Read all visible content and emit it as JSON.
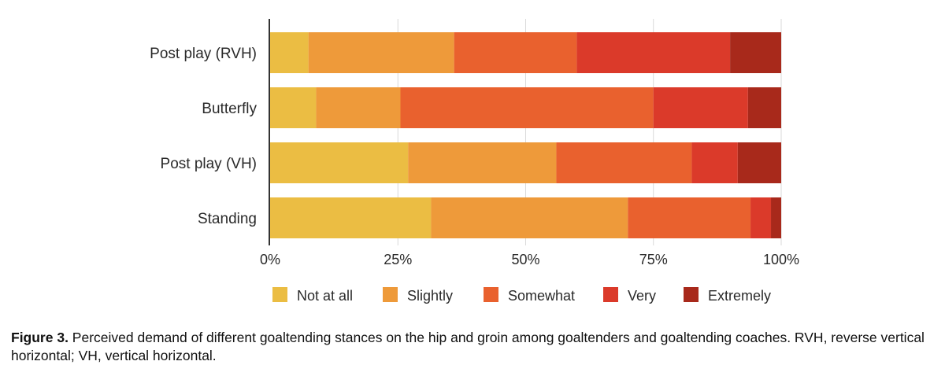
{
  "chart_data": {
    "type": "bar",
    "orientation": "horizontal",
    "stacked": true,
    "percent": true,
    "categories": [
      "Post play (RVH)",
      "Butterfly",
      "Post play (VH)",
      "Standing"
    ],
    "series": [
      {
        "name": "Not at all",
        "color": "#ebbd43",
        "values": [
          7.5,
          9,
          27,
          31.5
        ]
      },
      {
        "name": "Slightly",
        "color": "#ee9a3a",
        "values": [
          28.5,
          16.5,
          29,
          38.5
        ]
      },
      {
        "name": "Somewhat",
        "color": "#e9612e",
        "values": [
          24,
          49.5,
          26.5,
          24
        ]
      },
      {
        "name": "Very",
        "color": "#db3a2a",
        "values": [
          30,
          18.5,
          9,
          4
        ]
      },
      {
        "name": "Extremely",
        "color": "#a8291b",
        "values": [
          10,
          6.5,
          8.5,
          2
        ]
      }
    ],
    "xticks": [
      "0%",
      "25%",
      "50%",
      "75%",
      "100%"
    ],
    "xlim": [
      0,
      100
    ],
    "grid": true,
    "legend_position": "bottom"
  },
  "caption": {
    "label": "Figure 3.",
    "text": " Perceived demand of different goaltending stances on the hip and groin among goaltenders and goaltending coaches. RVH, reverse vertical horizontal; VH, vertical horizontal."
  }
}
